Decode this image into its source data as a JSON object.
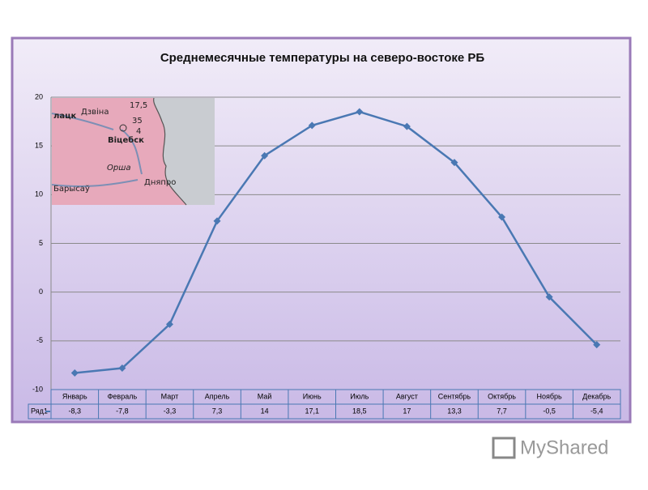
{
  "chart_data": {
    "type": "line",
    "title": "Среднемесячные температуры на северо-востоке РБ",
    "categories": [
      "Январь",
      "Февраль",
      "Март",
      "Апрель",
      "Май",
      "Июнь",
      "Июль",
      "Август",
      "Сентябрь",
      "Октябрь",
      "Ноябрь",
      "Декабрь"
    ],
    "series": [
      {
        "name": "Ряд1",
        "color": "#4a78b3",
        "values": [
          -8.3,
          -7.8,
          -3.3,
          7.3,
          14,
          17.1,
          18.5,
          17,
          13.3,
          7.7,
          -0.5,
          -5.4
        ],
        "value_labels": [
          "-8,3",
          "-7,8",
          "-3,3",
          "7,3",
          "14",
          "17,1",
          "18,5",
          "17",
          "13,3",
          "7,7",
          "-0,5",
          "-5,4"
        ]
      }
    ],
    "ylim": [
      -10,
      20
    ],
    "yticks": [
      -10,
      -5,
      0,
      5,
      10,
      15,
      20
    ],
    "grid": true,
    "data_table": true
  },
  "map_inset": {
    "labels": [
      "17,5",
      "лацк",
      "Дзвіна",
      "35",
      "4",
      "Віцебск",
      "Орша",
      "Барысаў",
      "Дняпро"
    ]
  },
  "watermark": "MyShared"
}
